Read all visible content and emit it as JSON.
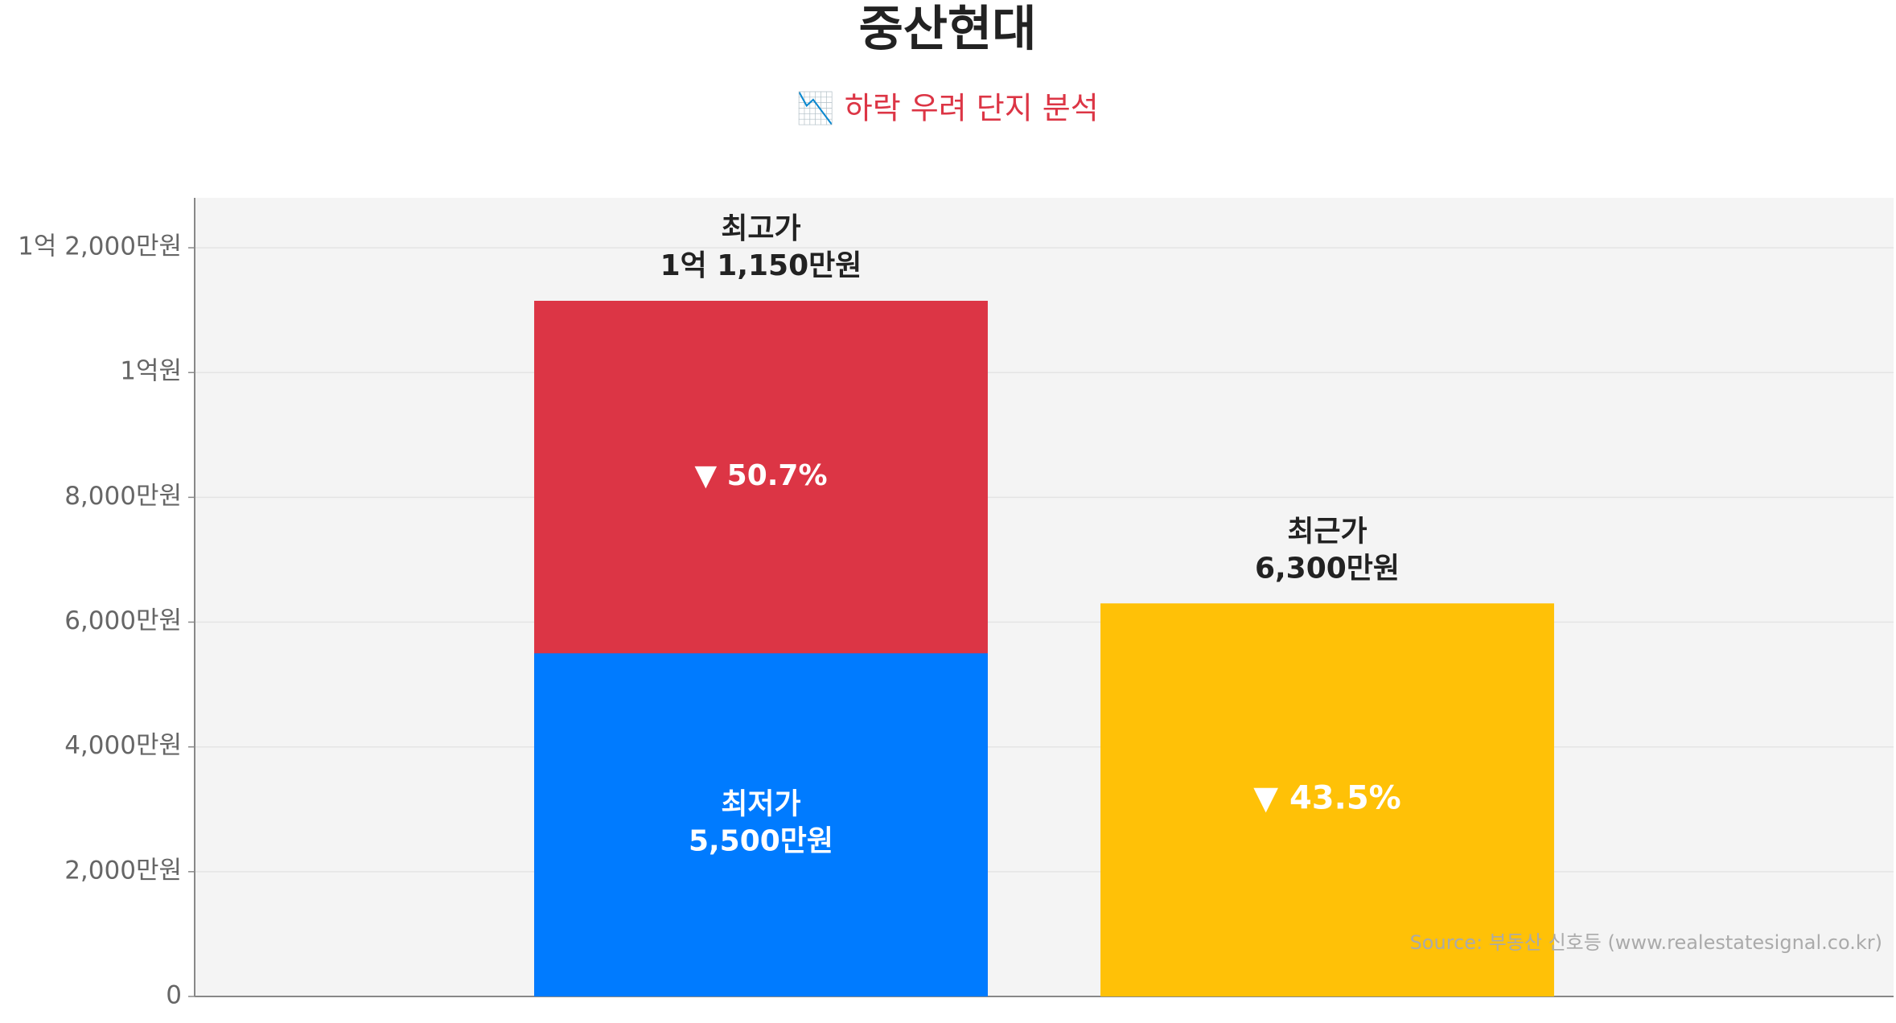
{
  "chart_data": {
    "type": "bar",
    "title": "중산현대",
    "subtitle": "📉 하락 우려 단지 분석",
    "categories": [
      null,
      null
    ],
    "series": [
      {
        "name": "최고가",
        "color": "#dc3545",
        "values": [
          11150,
          null
        ],
        "value_labels": [
          "1억 1,150만원",
          null
        ]
      },
      {
        "name": "최저가",
        "color": "#007bff",
        "values": [
          5500,
          null
        ],
        "value_labels": [
          "5,500만원",
          null
        ]
      },
      {
        "name": "최근가",
        "color": "#ffc107",
        "values": [
          null,
          6300
        ],
        "value_labels": [
          null,
          "6,300만원"
        ]
      }
    ],
    "annotations": [
      "▼ 50.7%",
      "▼ 43.5%"
    ],
    "ylim": [
      0,
      12800
    ],
    "yticks": [
      0,
      {
        "value": 2000,
        "label": "2,000만원"
      },
      {
        "value": 4000,
        "label": "4,000만원"
      },
      {
        "value": 6000,
        "label": "6,000만원"
      },
      {
        "value": 8000,
        "label": "8,000만원"
      },
      {
        "value": 10000,
        "label": "1억원"
      },
      {
        "value": 12000,
        "label": "1억 2,000만원"
      }
    ],
    "grid": true,
    "source": "Source: 부동산 신호등 (www.realestatesignal.co.kr)"
  }
}
